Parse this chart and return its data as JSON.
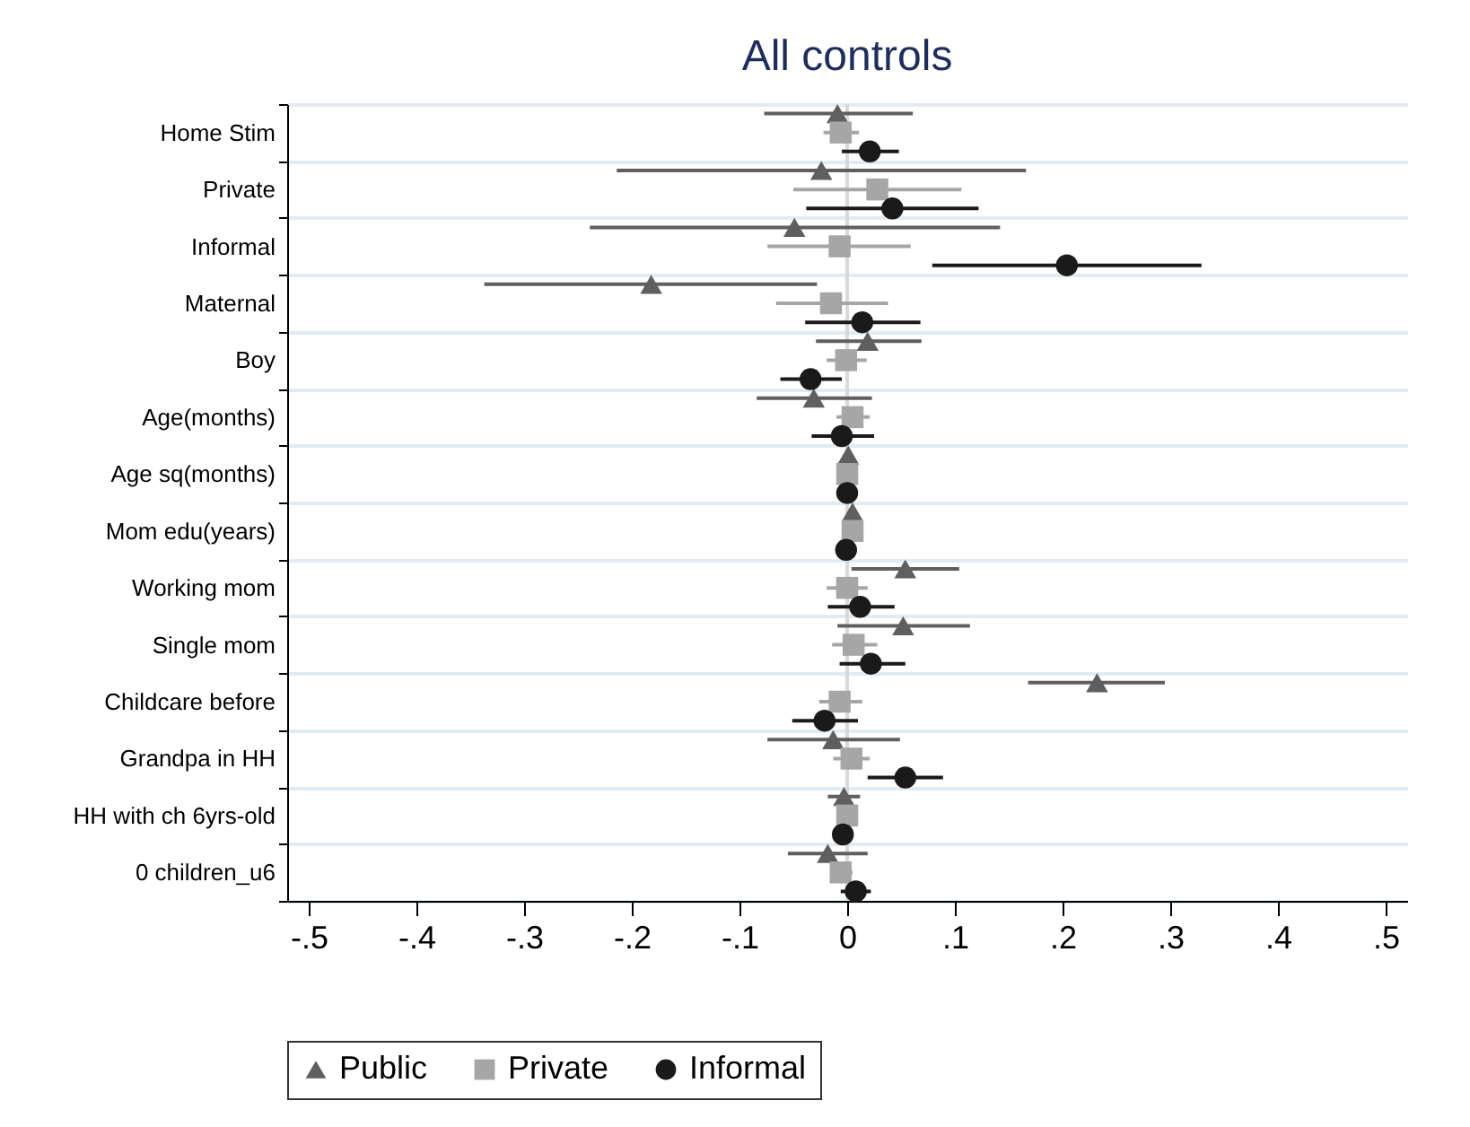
{
  "chart_data": {
    "type": "scatter",
    "orientation": "horizontal",
    "title": "All controls",
    "categories": [
      "Home Stim",
      "Private",
      "Informal",
      "Maternal",
      "Boy",
      "Age(months)",
      "Age sq(months)",
      "Mom edu(years)",
      "Working mom",
      "Single mom",
      "Childcare before",
      "Grandpa in HH",
      "HH with ch 6yrs-old",
      "0 children_u6"
    ],
    "series": [
      {
        "name": "Public",
        "color": "#5f5f5f",
        "marker": "triangle",
        "values": [
          -0.009,
          -0.024,
          -0.049,
          -0.182,
          0.019,
          -0.031,
          0.001,
          0.005,
          0.054,
          0.052,
          0.232,
          -0.013,
          -0.003,
          -0.018
        ],
        "errors": [
          [
            -0.077,
            0.061
          ],
          [
            -0.214,
            0.166
          ],
          [
            -0.239,
            0.142
          ],
          [
            -0.337,
            -0.028
          ],
          [
            -0.029,
            0.069
          ],
          [
            -0.084,
            0.023
          ],
          null,
          null,
          [
            0.004,
            0.104
          ],
          [
            -0.009,
            0.114
          ],
          [
            0.168,
            0.295
          ],
          [
            -0.074,
            0.049
          ],
          [
            -0.018,
            0.012
          ],
          [
            -0.055,
            0.019
          ]
        ]
      },
      {
        "name": "Private",
        "color": "#a6a6a6",
        "marker": "square",
        "values": [
          -0.006,
          0.028,
          -0.007,
          -0.015,
          -0.001,
          0.005,
          0,
          0.005,
          0,
          0.006,
          -0.007,
          0.004,
          0,
          -0.006
        ],
        "errors": [
          [
            -0.022,
            0.011
          ],
          [
            -0.05,
            0.106
          ],
          [
            -0.074,
            0.059
          ],
          [
            -0.066,
            0.038
          ],
          [
            -0.019,
            0.018
          ],
          [
            -0.01,
            0.021
          ],
          null,
          null,
          [
            -0.019,
            0.019
          ],
          [
            -0.014,
            0.028
          ],
          [
            -0.026,
            0.014
          ],
          [
            -0.013,
            0.021
          ],
          null,
          [
            -0.016,
            0.005
          ]
        ]
      },
      {
        "name": "Informal",
        "color": "#1a1a1a",
        "marker": "circle",
        "values": [
          0.021,
          0.042,
          0.204,
          0.014,
          -0.034,
          -0.005,
          0,
          -0.001,
          0.012,
          0.022,
          -0.021,
          0.054,
          -0.004,
          0.008
        ],
        "errors": [
          [
            -0.005,
            0.048
          ],
          [
            -0.038,
            0.122
          ],
          [
            0.079,
            0.329
          ],
          [
            -0.039,
            0.068
          ],
          [
            -0.062,
            -0.005
          ],
          [
            -0.033,
            0.025
          ],
          null,
          null,
          [
            -0.018,
            0.044
          ],
          [
            -0.007,
            0.054
          ],
          [
            -0.051,
            0.01
          ],
          [
            0.019,
            0.089
          ],
          null,
          [
            -0.006,
            0.022
          ]
        ]
      }
    ],
    "xlim": [
      -0.52,
      0.52
    ],
    "xticks": [
      {
        "value": -0.5,
        "label": "-.5"
      },
      {
        "value": -0.4,
        "label": "-.4"
      },
      {
        "value": -0.3,
        "label": "-.3"
      },
      {
        "value": -0.2,
        "label": "-.2"
      },
      {
        "value": -0.1,
        "label": "-.1"
      },
      0,
      {
        "value": 0.1,
        "label": ".1"
      },
      {
        "value": 0.2,
        "label": ".2"
      },
      {
        "value": 0.3,
        "label": ".3"
      },
      {
        "value": 0.4,
        "label": ".4"
      },
      {
        "value": 0.5,
        "label": ".5"
      }
    ],
    "ref_lines": [
      {
        "axis": "x",
        "value": 0,
        "color": "#d9d9d9"
      }
    ],
    "grid": "y",
    "legend": "bottom"
  }
}
